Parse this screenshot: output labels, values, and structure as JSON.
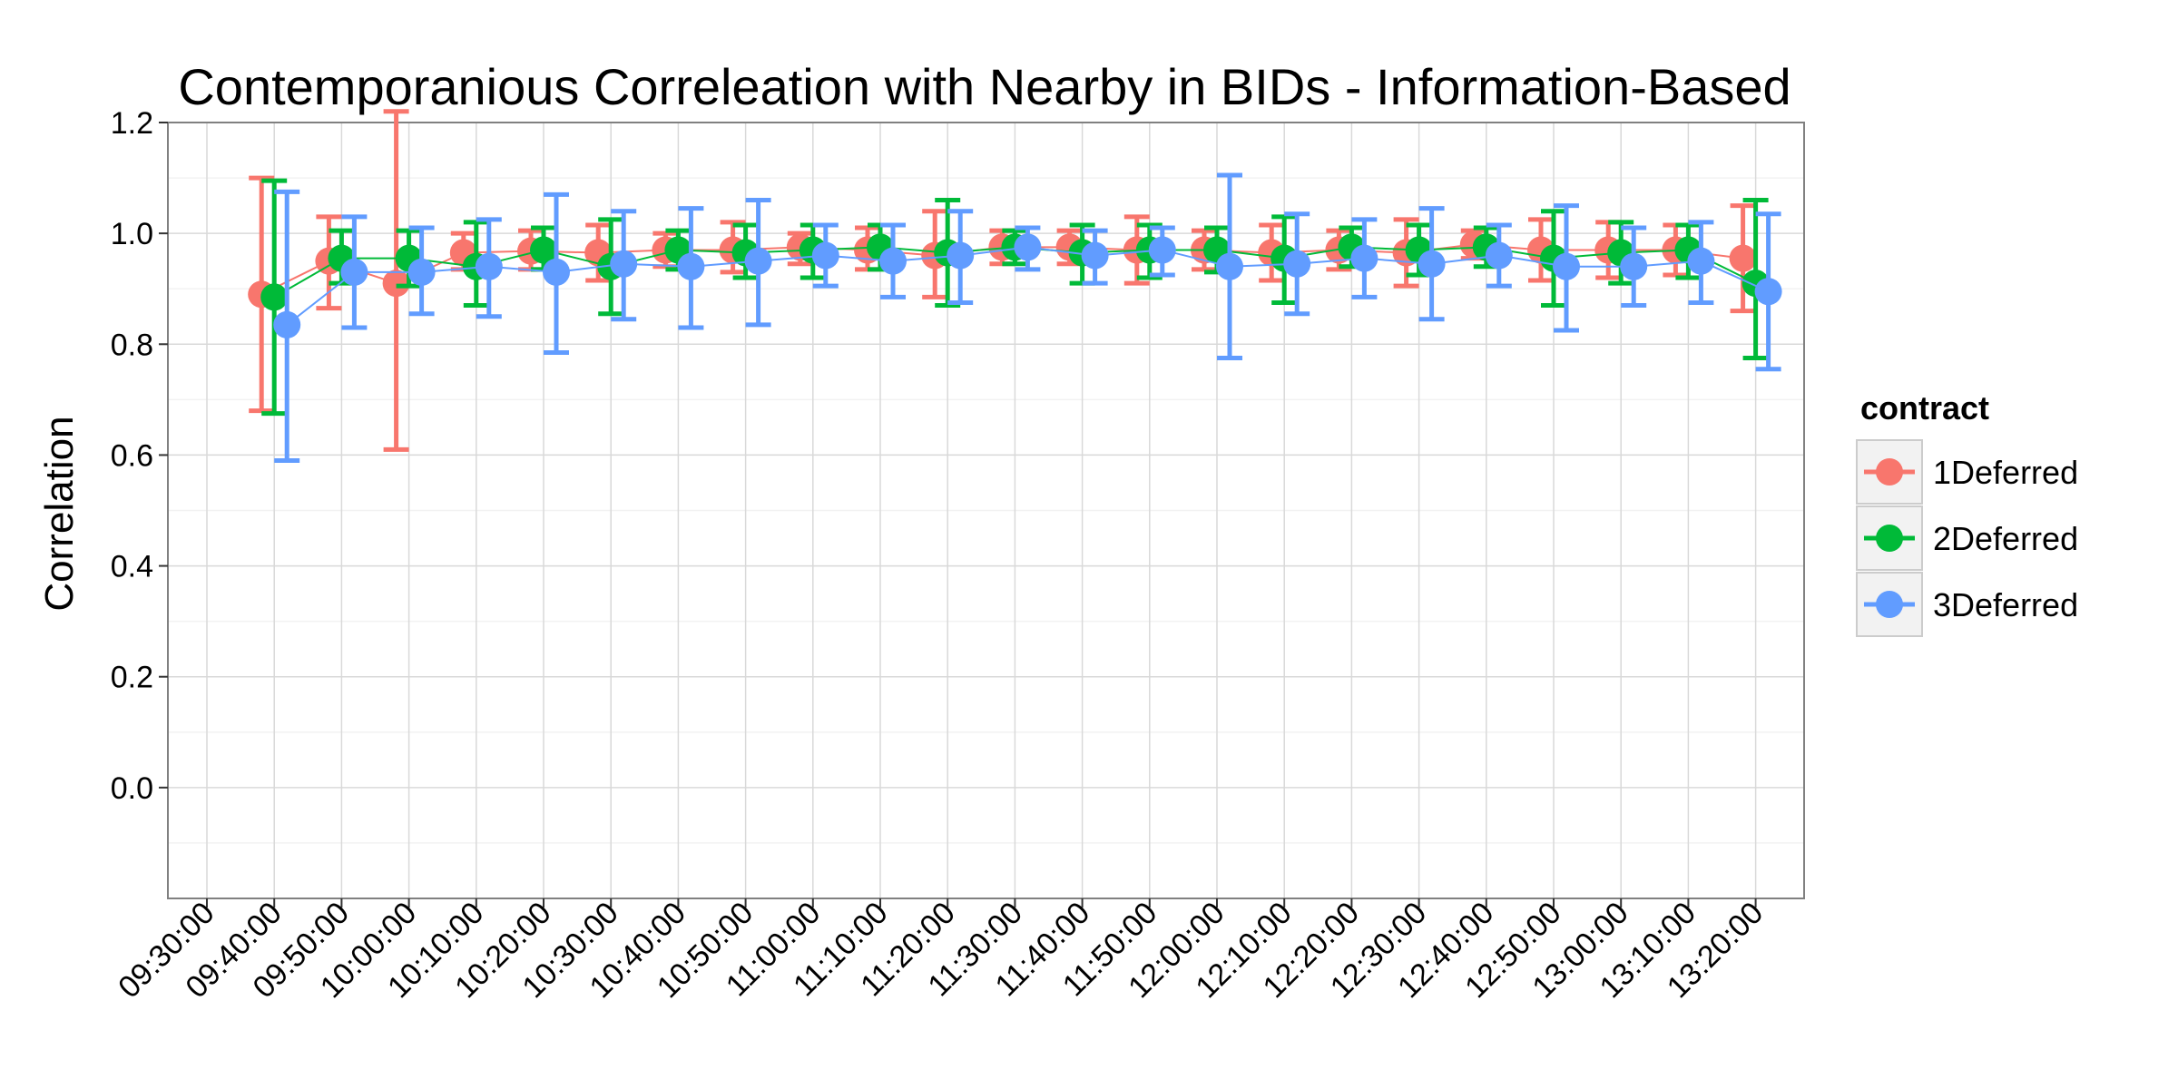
{
  "chart_data": {
    "type": "line",
    "title": "Contemporanious Correleation with Nearby in BIDs - Information-Based",
    "xlabel": "",
    "ylabel": "Correlation",
    "ylim": [
      -0.2,
      1.2
    ],
    "yticks": [
      "0.0",
      "0.2",
      "0.4",
      "0.6",
      "0.8",
      "1.0",
      "1.2"
    ],
    "xticks": [
      "09:30:00",
      "09:40:00",
      "09:50:00",
      "10:00:00",
      "10:10:00",
      "10:20:00",
      "10:30:00",
      "10:40:00",
      "10:50:00",
      "11:00:00",
      "11:10:00",
      "11:20:00",
      "11:30:00",
      "11:40:00",
      "11:50:00",
      "12:00:00",
      "12:10:00",
      "12:20:00",
      "12:30:00",
      "12:40:00",
      "12:50:00",
      "13:00:00",
      "13:10:00",
      "13:20:00"
    ],
    "grid": true,
    "legend_title": "contract",
    "legend_position": "right",
    "series": [
      {
        "name": "1Deferred",
        "color": "#F8766D",
        "x": [
          "09:40:00",
          "09:50:00",
          "10:00:00",
          "10:10:00",
          "10:20:00",
          "10:30:00",
          "10:40:00",
          "10:50:00",
          "11:00:00",
          "11:10:00",
          "11:20:00",
          "11:30:00",
          "11:40:00",
          "11:50:00",
          "12:00:00",
          "12:10:00",
          "12:20:00",
          "12:30:00",
          "12:40:00",
          "12:50:00",
          "13:00:00",
          "13:10:00",
          "13:20:00"
        ],
        "y": [
          0.89,
          0.95,
          0.91,
          0.965,
          0.968,
          0.965,
          0.97,
          0.97,
          0.975,
          0.97,
          0.96,
          0.975,
          0.975,
          0.97,
          0.97,
          0.965,
          0.97,
          0.965,
          0.98,
          0.97,
          0.97,
          0.97,
          0.955
        ],
        "lower": [
          0.68,
          0.865,
          0.61,
          0.935,
          0.935,
          0.915,
          0.94,
          0.93,
          0.945,
          0.935,
          0.885,
          0.945,
          0.945,
          0.91,
          0.935,
          0.915,
          0.935,
          0.905,
          0.955,
          0.915,
          0.92,
          0.925,
          0.86
        ],
        "upper": [
          1.1,
          1.03,
          1.22,
          1.0,
          1.005,
          1.015,
          1.0,
          1.02,
          1.0,
          1.01,
          1.04,
          1.005,
          1.005,
          1.03,
          1.005,
          1.015,
          1.005,
          1.025,
          1.005,
          1.025,
          1.02,
          1.015,
          1.05
        ]
      },
      {
        "name": "2Deferred",
        "color": "#00BA38",
        "x": [
          "09:40:00",
          "09:50:00",
          "10:00:00",
          "10:10:00",
          "10:20:00",
          "10:30:00",
          "10:40:00",
          "10:50:00",
          "11:00:00",
          "11:10:00",
          "11:20:00",
          "11:30:00",
          "11:40:00",
          "11:50:00",
          "12:00:00",
          "12:10:00",
          "12:20:00",
          "12:30:00",
          "12:40:00",
          "12:50:00",
          "13:00:00",
          "13:10:00",
          "13:20:00"
        ],
        "y": [
          0.885,
          0.955,
          0.955,
          0.94,
          0.97,
          0.94,
          0.97,
          0.965,
          0.97,
          0.975,
          0.965,
          0.975,
          0.965,
          0.97,
          0.97,
          0.955,
          0.975,
          0.97,
          0.975,
          0.955,
          0.965,
          0.97,
          0.91
        ],
        "lower": [
          0.675,
          0.91,
          0.905,
          0.87,
          0.935,
          0.855,
          0.935,
          0.92,
          0.92,
          0.935,
          0.87,
          0.945,
          0.91,
          0.92,
          0.93,
          0.875,
          0.94,
          0.925,
          0.94,
          0.87,
          0.91,
          0.92,
          0.775
        ],
        "upper": [
          1.095,
          1.005,
          1.005,
          1.02,
          1.01,
          1.025,
          1.005,
          1.015,
          1.015,
          1.015,
          1.06,
          1.005,
          1.015,
          1.015,
          1.01,
          1.03,
          1.01,
          1.015,
          1.01,
          1.04,
          1.02,
          1.015,
          1.06
        ]
      },
      {
        "name": "3Deferred",
        "color": "#619CFF",
        "x": [
          "09:40:00",
          "09:50:00",
          "10:00:00",
          "10:10:00",
          "10:20:00",
          "10:30:00",
          "10:40:00",
          "10:50:00",
          "11:00:00",
          "11:10:00",
          "11:20:00",
          "11:30:00",
          "11:40:00",
          "11:50:00",
          "12:00:00",
          "12:10:00",
          "12:20:00",
          "12:30:00",
          "12:40:00",
          "12:50:00",
          "13:00:00",
          "13:10:00",
          "13:20:00"
        ],
        "y": [
          0.835,
          0.93,
          0.93,
          0.94,
          0.93,
          0.945,
          0.94,
          0.95,
          0.96,
          0.95,
          0.96,
          0.975,
          0.96,
          0.97,
          0.94,
          0.945,
          0.955,
          0.945,
          0.96,
          0.94,
          0.94,
          0.95,
          0.895
        ],
        "lower": [
          0.59,
          0.83,
          0.855,
          0.85,
          0.785,
          0.845,
          0.83,
          0.835,
          0.905,
          0.885,
          0.875,
          0.935,
          0.91,
          0.925,
          0.775,
          0.855,
          0.885,
          0.845,
          0.905,
          0.825,
          0.87,
          0.875,
          0.755
        ],
        "upper": [
          1.075,
          1.03,
          1.01,
          1.025,
          1.07,
          1.04,
          1.045,
          1.06,
          1.015,
          1.015,
          1.04,
          1.01,
          1.005,
          1.01,
          1.105,
          1.035,
          1.025,
          1.045,
          1.015,
          1.05,
          1.01,
          1.02,
          1.035
        ]
      }
    ]
  }
}
